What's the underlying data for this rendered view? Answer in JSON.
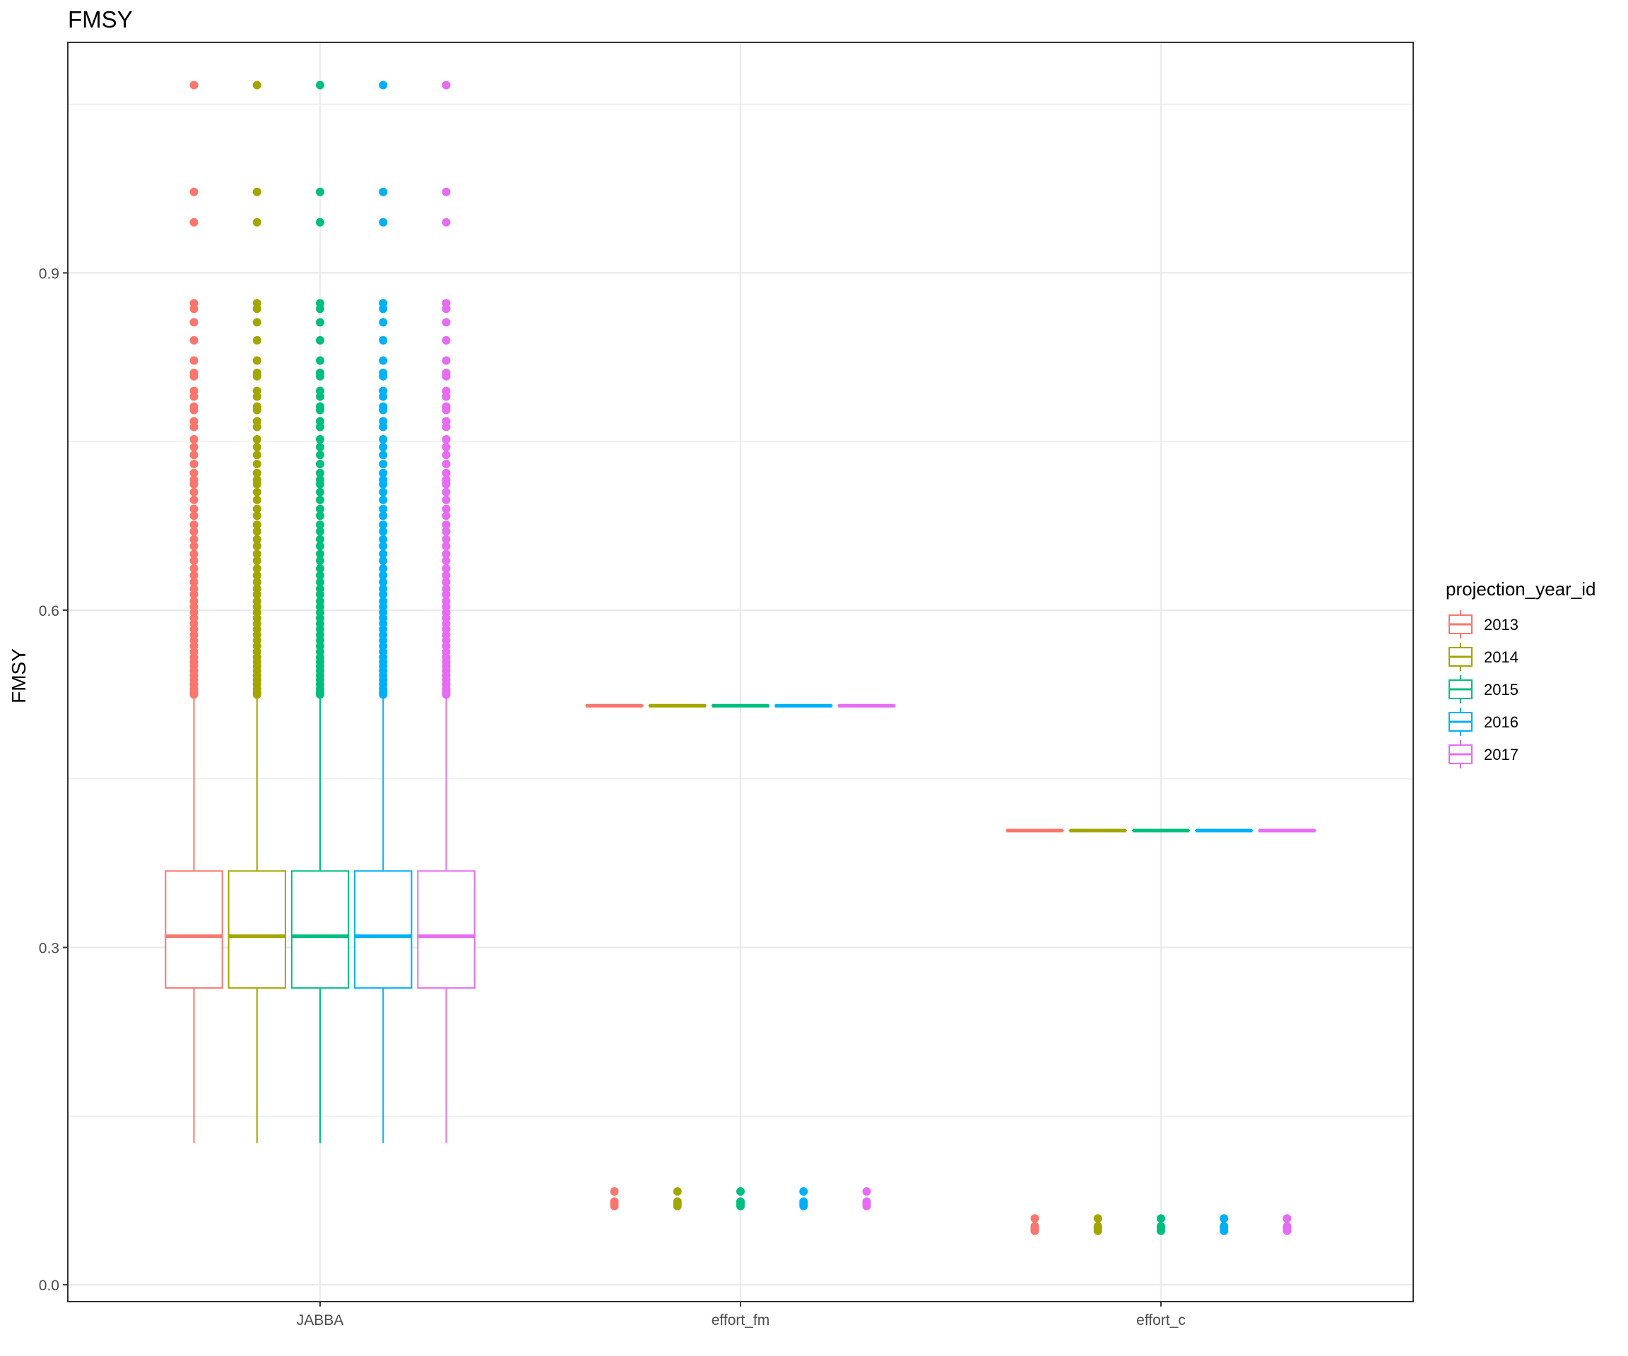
{
  "chart_data": {
    "type": "boxplot",
    "title": "FMSY",
    "xlabel": "",
    "ylabel": "FMSY",
    "ylim": [
      -0.015,
      1.105
    ],
    "yticks": [
      0.0,
      0.3,
      0.6,
      0.9
    ],
    "ytick_labels": [
      "0.0",
      "0.3",
      "0.6",
      "0.9"
    ],
    "grid": true,
    "legend": {
      "title": "projection_year_id",
      "position": "right"
    },
    "categories": [
      "JABBA",
      "effort_fm",
      "effort_c"
    ],
    "series": [
      {
        "name": "2013",
        "color": "#F8766D"
      },
      {
        "name": "2014",
        "color": "#A3A500"
      },
      {
        "name": "2015",
        "color": "#00BF7D"
      },
      {
        "name": "2016",
        "color": "#00B0F6"
      },
      {
        "name": "2017",
        "color": "#E76BF3"
      }
    ],
    "boxes": [
      {
        "category": "JABBA",
        "q1": 0.264,
        "median": 0.31,
        "q3": 0.368,
        "whisker_low": 0.126,
        "whisker_high": 0.524,
        "outliers": [
          1.067,
          0.972,
          0.945,
          0.873,
          0.868,
          0.856,
          0.84,
          0.822,
          0.811,
          0.808,
          0.795,
          0.79,
          0.781,
          0.778,
          0.768,
          0.763,
          0.752,
          0.745,
          0.738,
          0.73,
          0.722,
          0.716,
          0.712,
          0.705,
          0.698,
          0.69,
          0.684,
          0.676,
          0.67,
          0.663,
          0.657,
          0.65,
          0.644,
          0.637,
          0.631,
          0.625,
          0.619,
          0.614,
          0.608,
          0.603,
          0.598,
          0.593,
          0.588,
          0.583,
          0.578,
          0.573,
          0.568,
          0.563,
          0.558,
          0.554,
          0.55,
          0.546,
          0.542,
          0.538,
          0.534,
          0.53,
          0.527,
          0.525
        ]
      },
      {
        "category": "effort_fm",
        "q1": 0.515,
        "median": 0.515,
        "q3": 0.515,
        "whisker_low": 0.515,
        "whisker_high": 0.515,
        "outliers": [
          0.083,
          0.074,
          0.072,
          0.07
        ]
      },
      {
        "category": "effort_c",
        "q1": 0.404,
        "median": 0.404,
        "q3": 0.404,
        "whisker_low": 0.404,
        "whisker_high": 0.404,
        "outliers": [
          0.059,
          0.052,
          0.05,
          0.048
        ]
      }
    ]
  }
}
